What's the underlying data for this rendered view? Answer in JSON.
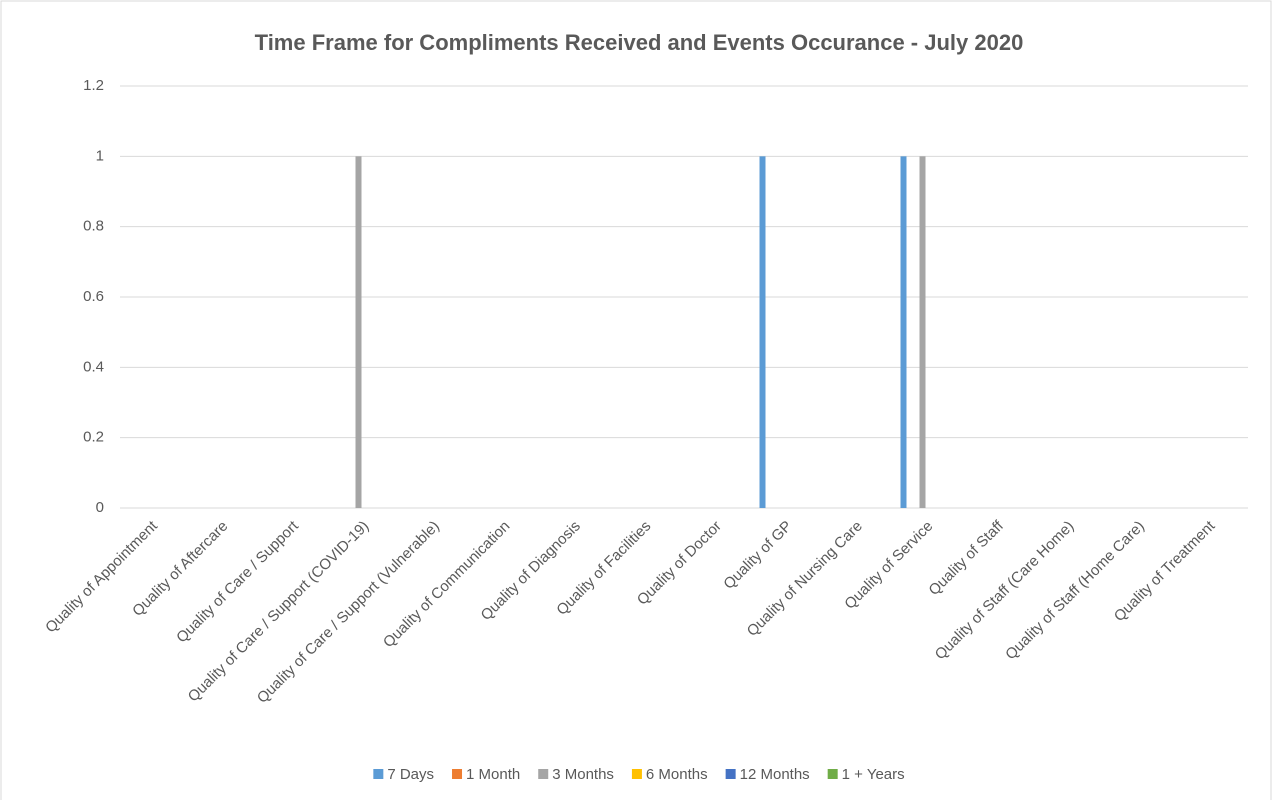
{
  "chart_data": {
    "type": "bar",
    "title": "Time Frame for Compliments Received and Events Occurance - July 2020",
    "categories": [
      "Quality of Appointment",
      "Quality of Aftercare",
      "Quality of Care / Support",
      "Quality of Care / Support (COVID-19)",
      "Quality of Care / Support (Vulnerable)",
      "Quality of Communication",
      "Quality of Diagnosis",
      "Quality of Facilities",
      "Quality of Doctor",
      "Quality of GP",
      "Quality of Nursing Care",
      "Quality of Service",
      "Quality of Staff",
      "Quality of Staff (Care Home)",
      "Quality of Staff (Home Care)",
      "Quality of Treatment"
    ],
    "series": [
      {
        "name": "7 Days",
        "color": "#5b9bd5",
        "values": [
          0,
          0,
          0,
          0,
          0,
          0,
          0,
          0,
          0,
          1,
          0,
          1,
          0,
          0,
          0,
          0
        ]
      },
      {
        "name": "1 Month",
        "color": "#ed7d31",
        "values": [
          0,
          0,
          0,
          0,
          0,
          0,
          0,
          0,
          0,
          0,
          0,
          0,
          0,
          0,
          0,
          0
        ]
      },
      {
        "name": "3 Months",
        "color": "#a5a5a5",
        "values": [
          0,
          0,
          0,
          1,
          0,
          0,
          0,
          0,
          0,
          0,
          0,
          1,
          0,
          0,
          0,
          0
        ]
      },
      {
        "name": "6 Months",
        "color": "#ffc000",
        "values": [
          0,
          0,
          0,
          0,
          0,
          0,
          0,
          0,
          0,
          0,
          0,
          0,
          0,
          0,
          0,
          0
        ]
      },
      {
        "name": "12 Months",
        "color": "#4472c4",
        "values": [
          0,
          0,
          0,
          0,
          0,
          0,
          0,
          0,
          0,
          0,
          0,
          0,
          0,
          0,
          0,
          0
        ]
      },
      {
        "name": "1 + Years",
        "color": "#70ad47",
        "values": [
          0,
          0,
          0,
          0,
          0,
          0,
          0,
          0,
          0,
          0,
          0,
          0,
          0,
          0,
          0,
          0
        ]
      }
    ],
    "ylim": [
      0,
      1.2
    ],
    "yticks": [
      0,
      0.2,
      0.4,
      0.6,
      0.8,
      1,
      1.2
    ],
    "grid": true,
    "legend": "bottom"
  }
}
